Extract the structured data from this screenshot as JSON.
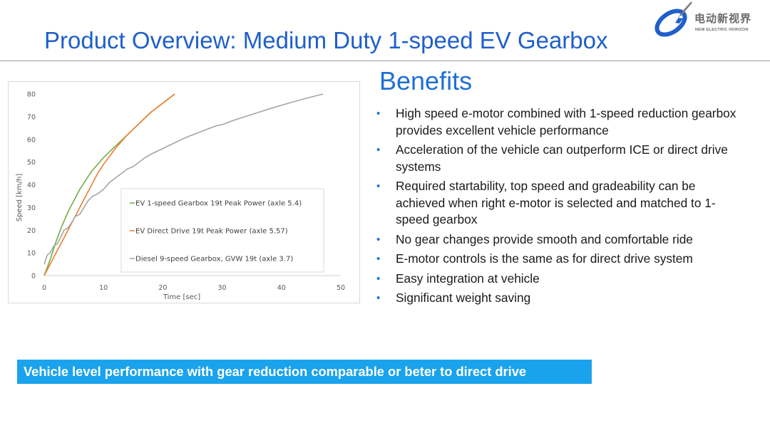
{
  "slide": {
    "title": "Product Overview: Medium Duty 1-speed EV Gearbox",
    "logo": {
      "text_cn": "电动新视界",
      "text_en": "NEW ELECTRIC HORIZON",
      "icon": "lightning-swirl-logo-icon"
    },
    "benefits_heading": "Benefits",
    "benefits": [
      "High speed e-motor combined with 1-speed reduction gearbox provides excellent vehicle performance",
      "Acceleration of the vehicle can outperform ICE or direct drive systems",
      "Required startability, top speed and gradeability can be achieved when right e-motor is selected and matched to 1-speed gearbox",
      "No gear changes provide smooth and comfortable ride",
      "E-motor controls is the same as for direct drive system",
      "Easy integration at vehicle",
      "Significant weight saving"
    ],
    "banner": "Vehicle level performance with gear reduction comparable or beter to direct drive",
    "colors": {
      "title": "#1f5fc9",
      "heading": "#1f6fd6",
      "banner_bg": "#1aa3ec",
      "bullet": "#1f6fd6"
    }
  },
  "chart_data": {
    "type": "line",
    "title": "",
    "xlabel": "Time [sec]",
    "ylabel": "Speed [km/h]",
    "xlim": [
      0,
      50
    ],
    "ylim": [
      0,
      80
    ],
    "xticks": [
      0,
      10,
      20,
      30,
      40,
      50
    ],
    "yticks": [
      0,
      10,
      20,
      30,
      40,
      50,
      60,
      70,
      80
    ],
    "grid": false,
    "legend_position": "center-right",
    "series": [
      {
        "name": "EV 1-speed Gearbox 19t Peak Power (axle 5.4)",
        "color": "#70ad47",
        "points": [
          [
            0,
            0
          ],
          [
            1,
            7
          ],
          [
            2,
            15
          ],
          [
            3,
            22
          ],
          [
            4,
            28
          ],
          [
            5,
            33
          ],
          [
            6,
            38
          ],
          [
            7,
            42
          ],
          [
            8,
            46
          ],
          [
            10,
            52
          ],
          [
            12,
            57
          ],
          [
            14,
            62
          ],
          [
            16,
            67
          ],
          [
            18,
            72
          ],
          [
            19,
            74
          ],
          [
            20,
            76
          ],
          [
            21,
            78
          ],
          [
            22,
            80
          ]
        ]
      },
      {
        "name": "EV Direct Drive 19t Peak Power (axle 5.57)",
        "color": "#ed7d31",
        "points": [
          [
            0,
            0
          ],
          [
            1,
            5
          ],
          [
            2,
            10
          ],
          [
            3,
            15
          ],
          [
            4,
            20
          ],
          [
            5,
            25
          ],
          [
            6,
            30
          ],
          [
            7,
            35
          ],
          [
            8,
            40
          ],
          [
            9,
            45
          ],
          [
            10,
            49
          ],
          [
            12,
            56
          ],
          [
            14,
            62
          ],
          [
            16,
            67
          ],
          [
            18,
            72
          ],
          [
            20,
            76
          ],
          [
            21,
            78
          ],
          [
            22,
            80
          ]
        ]
      },
      {
        "name": "Diesel 9-speed Gearbox, GVW 19t (axle 3.7)",
        "color": "#a5a5a5",
        "points": [
          [
            0,
            5
          ],
          [
            0.5,
            9
          ],
          [
            1,
            10
          ],
          [
            1.6,
            13
          ],
          [
            2.2,
            14
          ],
          [
            3,
            18
          ],
          [
            3.3,
            20
          ],
          [
            4,
            21
          ],
          [
            4.8,
            24
          ],
          [
            5.2,
            26
          ],
          [
            6,
            27
          ],
          [
            6.7,
            30
          ],
          [
            7.4,
            33
          ],
          [
            8.2,
            35
          ],
          [
            9,
            36
          ],
          [
            10,
            38
          ],
          [
            11,
            41
          ],
          [
            12,
            43
          ],
          [
            13,
            45
          ],
          [
            14,
            47
          ],
          [
            15,
            48
          ],
          [
            16,
            50
          ],
          [
            17,
            52
          ],
          [
            18,
            53.5
          ],
          [
            20,
            56
          ],
          [
            22,
            58.5
          ],
          [
            24,
            61
          ],
          [
            26,
            63
          ],
          [
            28,
            65
          ],
          [
            29,
            66
          ],
          [
            30,
            66.5
          ],
          [
            32,
            68.5
          ],
          [
            35,
            71
          ],
          [
            38,
            73.5
          ],
          [
            41,
            75.8
          ],
          [
            44,
            78
          ],
          [
            47,
            80
          ]
        ]
      }
    ]
  }
}
